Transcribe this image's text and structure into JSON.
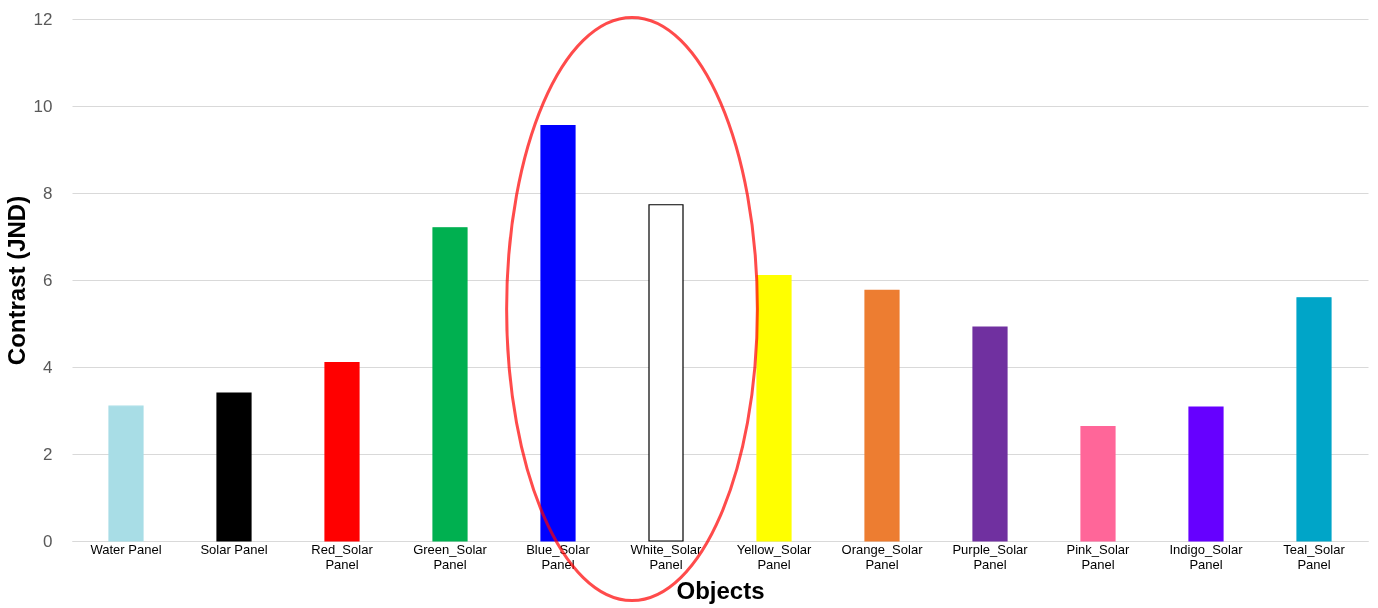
{
  "chart_data": {
    "type": "bar",
    "xlabel": "Objects",
    "ylabel": "Contrast (JND)",
    "categories": [
      "Water Panel",
      "Solar Panel",
      "Red_Solar Panel",
      "Green_Solar Panel",
      "Blue_Solar Panel",
      "White_Solar Panel",
      "Yellow_Solar Panel",
      "Orange_Solar Panel",
      "Purple_Solar Panel",
      "Pink_Solar Panel",
      "Indigo_Solar Panel",
      "Teal_Solar Panel"
    ],
    "values": [
      3.1,
      3.4,
      4.1,
      7.2,
      9.55,
      7.73,
      6.1,
      5.76,
      4.92,
      2.63,
      3.08,
      5.59
    ],
    "colors": [
      "#a8dde6",
      "#000000",
      "#ff0000",
      "#00b050",
      "#0000ff",
      "#ffffff",
      "#ffff00",
      "#ed7d31",
      "#7030a0",
      "#ff6699",
      "#6600ff",
      "#00a5c8"
    ],
    "ylim": [
      0,
      12
    ],
    "yticks": [
      0,
      2,
      4,
      6,
      8,
      10,
      12
    ],
    "grid": "y"
  }
}
